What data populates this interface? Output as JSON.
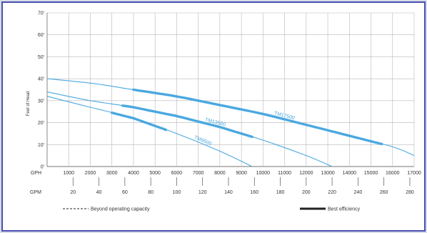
{
  "chart_data": {
    "type": "line",
    "title": "",
    "ylabel": "Feet of Head",
    "ylim": [
      0,
      70
    ],
    "y_ticks": [
      "0'",
      "10'",
      "20'",
      "30'",
      "40'",
      "50'",
      "60'",
      "70'"
    ],
    "y_tick_values": [
      0,
      10,
      20,
      30,
      40,
      50,
      60,
      70
    ],
    "xlim": [
      0,
      17000
    ],
    "x_unit_label": "GPH",
    "x_ticks": [
      "1000",
      "2000",
      "3000",
      "4000",
      "5000",
      "6000",
      "7000",
      "8000",
      "9000",
      "10000",
      "11000",
      "12000",
      "13000",
      "14000",
      "15000",
      "16000",
      "17000"
    ],
    "x_tick_values": [
      1000,
      2000,
      3000,
      4000,
      5000,
      6000,
      7000,
      8000,
      9000,
      10000,
      11000,
      12000,
      13000,
      14000,
      15000,
      16000,
      17000
    ],
    "x2_unit_label": "GPM",
    "x2_ticks": [
      "20",
      "40",
      "60",
      "80",
      "100",
      "120",
      "140",
      "160",
      "180",
      "200",
      "220",
      "240",
      "260",
      "280"
    ],
    "x2_tick_values": [
      20,
      40,
      60,
      80,
      100,
      120,
      140,
      160,
      180,
      200,
      220,
      240,
      260,
      280
    ],
    "grid": true,
    "series": [
      {
        "name": "TM17500",
        "x": [
          0,
          2000,
          4000,
          6000,
          8000,
          10000,
          12000,
          14000,
          16000,
          17000
        ],
        "y": [
          40,
          38,
          35,
          32,
          28,
          24,
          19,
          14,
          9,
          5
        ],
        "best_efficiency": [
          4000,
          15500
        ]
      },
      {
        "name": "TM13500",
        "x": [
          0,
          2000,
          4000,
          6000,
          8000,
          10000,
          12000,
          13200
        ],
        "y": [
          34,
          30,
          27,
          23,
          18,
          12,
          5,
          0
        ],
        "best_efficiency": [
          3500,
          9500
        ]
      },
      {
        "name": "TM9500",
        "x": [
          0,
          2000,
          4000,
          6000,
          8000,
          9500
        ],
        "y": [
          32,
          27,
          22,
          15,
          7,
          0
        ],
        "best_efficiency": [
          3000,
          5500
        ]
      }
    ],
    "legend": [
      {
        "style": "dashed",
        "label": "Beyond operating capacity"
      },
      {
        "style": "thick",
        "label": "Best efficiency"
      }
    ],
    "line_color": "#4aa8e0",
    "grid_color": "#b8b8b8"
  }
}
